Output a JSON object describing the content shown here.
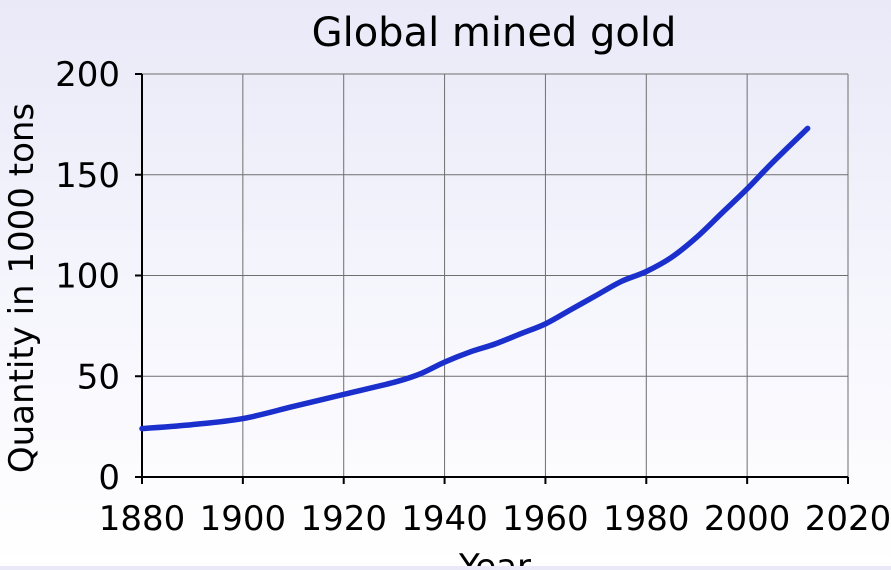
{
  "chart_data": {
    "type": "line",
    "title": "Global mined gold",
    "xlabel": "Year",
    "ylabel": "Quantity in 1000 tons",
    "xlim": [
      1880,
      2020
    ],
    "ylim": [
      0,
      200
    ],
    "x_ticks": [
      1880,
      1900,
      1920,
      1940,
      1960,
      1980,
      2000,
      2020
    ],
    "y_ticks": [
      0,
      50,
      100,
      150,
      200
    ],
    "grid": true,
    "series": [
      {
        "name": "",
        "color": "#1a2fcc",
        "x": [
          1880,
          1890,
          1900,
          1910,
          1920,
          1930,
          1935,
          1940,
          1945,
          1950,
          1955,
          1960,
          1965,
          1970,
          1975,
          1980,
          1985,
          1990,
          1995,
          2000,
          2005,
          2012
        ],
        "y": [
          24,
          26,
          29,
          35,
          41,
          47,
          51,
          57,
          62,
          66,
          71,
          76,
          83,
          90,
          97,
          102,
          109,
          119,
          131,
          143,
          156,
          173
        ]
      }
    ]
  }
}
